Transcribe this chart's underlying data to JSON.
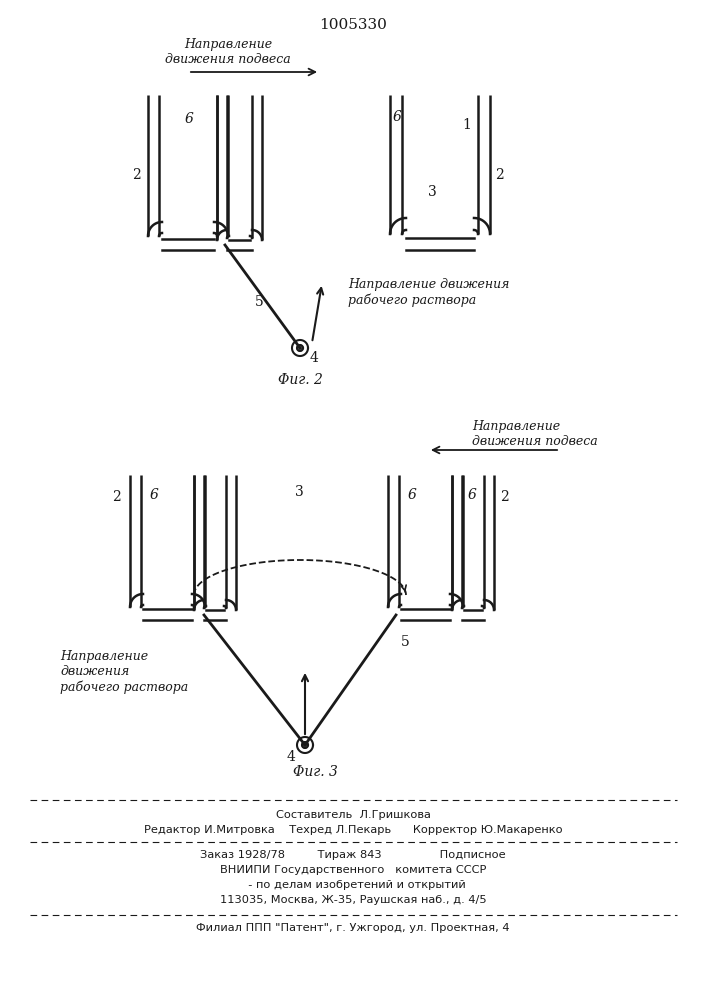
{
  "title": "1005330",
  "fig2_label": "Φиг. 2",
  "fig3_label": "Φиг. 3",
  "direction_podves_fig2": "Направление\nдвижения подвеса",
  "direction_rastvora_fig2": "Направление движения\nрабочего раствора",
  "direction_podves_fig3": "Направление\nдвижения подвеса",
  "direction_rastvora_fig3": "Направление\nдвижения\nрабочего раствора",
  "footer_line1": "Составитель  Л.Гришкова",
  "footer_line2": "Редактор И.Митровка    Техред Л.Пекарь      Корректор Ю.Макаренко",
  "footer_line3": "Заказ 1928/78         Тираж 843                Подписное",
  "footer_line4": "ВНИИПИ Государственного   комитета СССР",
  "footer_line5": "  - по делам изобретений и открытий",
  "footer_line6": "113035, Москва, Ж-35, Раушская наб., д. 4/5",
  "footer_line7": "Филиал ППП \"Патент\", г. Ужгород, ул. Проектная, 4",
  "bg_color": "#ffffff",
  "line_color": "#1a1a1a",
  "text_color": "#1a1a1a"
}
